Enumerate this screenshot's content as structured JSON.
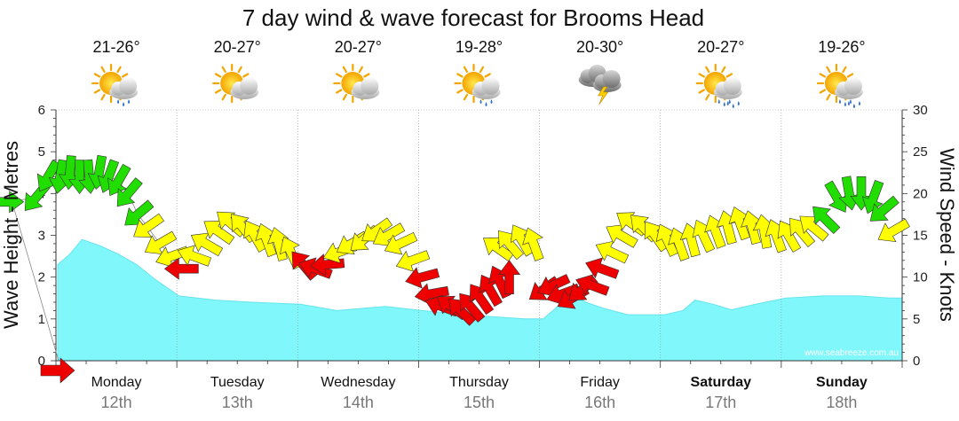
{
  "title": "7 day wind & wave forecast for Brooms Head",
  "watermark": "www.seabreeze.com.au",
  "left_axis_label": "Wave Height - Metres",
  "right_axis_label": "Wind Speed - Knots",
  "colors": {
    "wave_fill": "#7ff7fb",
    "wave_stroke": "#67e4ec",
    "green": "#22dd00",
    "yellow": "#ffff00",
    "red": "#ee0000",
    "grid": "#999999",
    "arrow_outline": "#333333"
  },
  "days": [
    {
      "name": "Monday",
      "date": "12th",
      "temp": "21-26°",
      "icon": "partly-cloudy-showers-icon",
      "bold": false
    },
    {
      "name": "Tuesday",
      "date": "13th",
      "temp": "20-27°",
      "icon": "partly-cloudy-icon",
      "bold": false
    },
    {
      "name": "Wednesday",
      "date": "14th",
      "temp": "20-27°",
      "icon": "partly-cloudy-icon",
      "bold": false
    },
    {
      "name": "Thursday",
      "date": "15th",
      "temp": "19-28°",
      "icon": "partly-cloudy-showers-icon",
      "bold": false
    },
    {
      "name": "Friday",
      "date": "16th",
      "temp": "20-30°",
      "icon": "thunderstorm-icon",
      "bold": false
    },
    {
      "name": "Saturday",
      "date": "17th",
      "temp": "20-27°",
      "icon": "partly-cloudy-rain-icon",
      "bold": true
    },
    {
      "name": "Sunday",
      "date": "18th",
      "temp": "19-26°",
      "icon": "partly-cloudy-rain-icon",
      "bold": true
    }
  ],
  "chart_data": {
    "type": "area",
    "x_unit": "days from start of Monday 12th",
    "left_axis": {
      "label": "Wave Height - Metres",
      "range": [
        0,
        6
      ],
      "ticks": [
        "0",
        "1",
        "2",
        "3",
        "4",
        "5",
        "6"
      ]
    },
    "right_axis": {
      "label": "Wind Speed - Knots",
      "range": [
        0,
        30
      ],
      "ticks": [
        "0",
        "5",
        "10",
        "15",
        "20",
        "25",
        "30"
      ]
    },
    "grid": true,
    "wave_height": [
      [
        0.0,
        2.3
      ],
      [
        0.1,
        2.55
      ],
      [
        0.2,
        2.9
      ],
      [
        0.35,
        2.75
      ],
      [
        0.5,
        2.55
      ],
      [
        0.65,
        2.3
      ],
      [
        0.8,
        1.95
      ],
      [
        1.0,
        1.55
      ],
      [
        1.3,
        1.45
      ],
      [
        1.6,
        1.4
      ],
      [
        2.0,
        1.35
      ],
      [
        2.3,
        1.2
      ],
      [
        2.5,
        1.25
      ],
      [
        2.7,
        1.3
      ],
      [
        3.0,
        1.2
      ],
      [
        3.3,
        1.12
      ],
      [
        3.6,
        1.05
      ],
      [
        3.85,
        1.0
      ],
      [
        4.0,
        1.0
      ],
      [
        4.1,
        1.25
      ],
      [
        4.2,
        1.55
      ],
      [
        4.25,
        1.6
      ],
      [
        4.35,
        1.4
      ],
      [
        4.5,
        1.25
      ],
      [
        4.7,
        1.1
      ],
      [
        5.0,
        1.1
      ],
      [
        5.15,
        1.2
      ],
      [
        5.25,
        1.45
      ],
      [
        5.4,
        1.35
      ],
      [
        5.55,
        1.22
      ],
      [
        5.75,
        1.35
      ],
      [
        6.0,
        1.5
      ],
      [
        6.3,
        1.55
      ],
      [
        6.6,
        1.55
      ],
      [
        6.85,
        1.5
      ]
    ],
    "wind": [
      {
        "t": -0.42,
        "kt": 19.0,
        "dir": 0,
        "c": "green"
      },
      {
        "t": -0.18,
        "kt": 19.5,
        "dir": 130,
        "c": "green"
      },
      {
        "t": -0.08,
        "kt": 22.0,
        "dir": 120,
        "c": "green"
      },
      {
        "t": 0.02,
        "kt": 22.0,
        "dir": 100,
        "c": "green"
      },
      {
        "t": 0.1,
        "kt": 22.5,
        "dir": 95,
        "c": "green"
      },
      {
        "t": 0.18,
        "kt": 22.0,
        "dir": 90,
        "c": "green"
      },
      {
        "t": 0.26,
        "kt": 22.0,
        "dir": 85,
        "c": "green"
      },
      {
        "t": 0.34,
        "kt": 22.5,
        "dir": 100,
        "c": "green"
      },
      {
        "t": 0.42,
        "kt": 22.0,
        "dir": 110,
        "c": "green"
      },
      {
        "t": 0.5,
        "kt": 21.5,
        "dir": 120,
        "c": "green"
      },
      {
        "t": 0.58,
        "kt": 20.0,
        "dir": 130,
        "c": "green"
      },
      {
        "t": 0.66,
        "kt": 17.5,
        "dir": 140,
        "c": "green"
      },
      {
        "t": 0.74,
        "kt": 16.0,
        "dir": 145,
        "c": "yellow"
      },
      {
        "t": 0.84,
        "kt": 14.0,
        "dir": 150,
        "c": "yellow"
      },
      {
        "t": 0.94,
        "kt": 12.5,
        "dir": 160,
        "c": "yellow"
      },
      {
        "t": 1.02,
        "kt": 11.0,
        "dir": 180,
        "c": "red"
      },
      {
        "t": 1.12,
        "kt": 12.5,
        "dir": 200,
        "c": "yellow"
      },
      {
        "t": 1.22,
        "kt": 14.0,
        "dir": 210,
        "c": "yellow"
      },
      {
        "t": 1.32,
        "kt": 15.5,
        "dir": 215,
        "c": "yellow"
      },
      {
        "t": 1.42,
        "kt": 16.5,
        "dir": 220,
        "c": "yellow"
      },
      {
        "t": 1.52,
        "kt": 16.0,
        "dir": 230,
        "c": "yellow"
      },
      {
        "t": 1.62,
        "kt": 15.0,
        "dir": 240,
        "c": "yellow"
      },
      {
        "t": 1.72,
        "kt": 14.5,
        "dir": 250,
        "c": "yellow"
      },
      {
        "t": 1.82,
        "kt": 14.0,
        "dir": 255,
        "c": "yellow"
      },
      {
        "t": 1.92,
        "kt": 13.0,
        "dir": 245,
        "c": "yellow"
      },
      {
        "t": 2.02,
        "kt": 11.5,
        "dir": 230,
        "c": "red"
      },
      {
        "t": 2.12,
        "kt": 11.0,
        "dir": 200,
        "c": "red"
      },
      {
        "t": 2.22,
        "kt": 11.5,
        "dir": 175,
        "c": "red"
      },
      {
        "t": 2.32,
        "kt": 13.0,
        "dir": 160,
        "c": "yellow"
      },
      {
        "t": 2.42,
        "kt": 14.0,
        "dir": 150,
        "c": "yellow"
      },
      {
        "t": 2.52,
        "kt": 14.5,
        "dir": 140,
        "c": "yellow"
      },
      {
        "t": 2.62,
        "kt": 15.5,
        "dir": 145,
        "c": "yellow"
      },
      {
        "t": 2.72,
        "kt": 15.0,
        "dir": 150,
        "c": "yellow"
      },
      {
        "t": 2.82,
        "kt": 14.0,
        "dir": 155,
        "c": "yellow"
      },
      {
        "t": 2.92,
        "kt": 12.0,
        "dir": 160,
        "c": "yellow"
      },
      {
        "t": 3.0,
        "kt": 10.0,
        "dir": 165,
        "c": "red"
      },
      {
        "t": 3.08,
        "kt": 8.0,
        "dir": 170,
        "c": "red"
      },
      {
        "t": 3.16,
        "kt": 6.5,
        "dir": 200,
        "c": "red"
      },
      {
        "t": 3.24,
        "kt": 6.5,
        "dir": 215,
        "c": "red"
      },
      {
        "t": 3.32,
        "kt": 6.0,
        "dir": 225,
        "c": "red"
      },
      {
        "t": 3.4,
        "kt": 6.5,
        "dir": 230,
        "c": "red"
      },
      {
        "t": 3.48,
        "kt": 7.5,
        "dir": 235,
        "c": "red"
      },
      {
        "t": 3.56,
        "kt": 8.5,
        "dir": 240,
        "c": "red"
      },
      {
        "t": 3.64,
        "kt": 9.5,
        "dir": 245,
        "c": "red"
      },
      {
        "t": 3.72,
        "kt": 10.0,
        "dir": 270,
        "c": "red"
      },
      {
        "t": 3.62,
        "kt": 13.5,
        "dir": 215,
        "c": "yellow"
      },
      {
        "t": 3.72,
        "kt": 14.0,
        "dir": 230,
        "c": "yellow"
      },
      {
        "t": 3.82,
        "kt": 14.5,
        "dir": 240,
        "c": "yellow"
      },
      {
        "t": 3.92,
        "kt": 14.0,
        "dir": 250,
        "c": "yellow"
      },
      {
        "t": 4.0,
        "kt": 8.5,
        "dir": 145,
        "c": "red"
      },
      {
        "t": 4.08,
        "kt": 9.0,
        "dir": 155,
        "c": "red"
      },
      {
        "t": 4.16,
        "kt": 8.0,
        "dir": 160,
        "c": "red"
      },
      {
        "t": 4.24,
        "kt": 7.5,
        "dir": 150,
        "c": "red"
      },
      {
        "t": 4.32,
        "kt": 8.5,
        "dir": 140,
        "c": "red"
      },
      {
        "t": 4.4,
        "kt": 9.0,
        "dir": 200,
        "c": "red"
      },
      {
        "t": 4.48,
        "kt": 11.0,
        "dir": 200,
        "c": "red"
      },
      {
        "t": 4.56,
        "kt": 13.0,
        "dir": 205,
        "c": "yellow"
      },
      {
        "t": 4.64,
        "kt": 15.0,
        "dir": 210,
        "c": "yellow"
      },
      {
        "t": 4.72,
        "kt": 16.5,
        "dir": 215,
        "c": "yellow"
      },
      {
        "t": 4.82,
        "kt": 16.0,
        "dir": 225,
        "c": "yellow"
      },
      {
        "t": 4.92,
        "kt": 15.0,
        "dir": 235,
        "c": "yellow"
      },
      {
        "t": 5.02,
        "kt": 14.5,
        "dir": 245,
        "c": "yellow"
      },
      {
        "t": 5.12,
        "kt": 14.0,
        "dir": 250,
        "c": "yellow"
      },
      {
        "t": 5.22,
        "kt": 14.5,
        "dir": 255,
        "c": "yellow"
      },
      {
        "t": 5.32,
        "kt": 15.0,
        "dir": 245,
        "c": "yellow"
      },
      {
        "t": 5.42,
        "kt": 15.5,
        "dir": 250,
        "c": "yellow"
      },
      {
        "t": 5.52,
        "kt": 16.0,
        "dir": 255,
        "c": "yellow"
      },
      {
        "t": 5.62,
        "kt": 16.5,
        "dir": 250,
        "c": "yellow"
      },
      {
        "t": 5.72,
        "kt": 16.0,
        "dir": 255,
        "c": "yellow"
      },
      {
        "t": 5.82,
        "kt": 15.5,
        "dir": 260,
        "c": "yellow"
      },
      {
        "t": 5.92,
        "kt": 15.0,
        "dir": 250,
        "c": "yellow"
      },
      {
        "t": 6.02,
        "kt": 15.0,
        "dir": 240,
        "c": "yellow"
      },
      {
        "t": 6.12,
        "kt": 15.5,
        "dir": 230,
        "c": "yellow"
      },
      {
        "t": 6.22,
        "kt": 16.0,
        "dir": 220,
        "c": "yellow"
      },
      {
        "t": 6.32,
        "kt": 17.0,
        "dir": 225,
        "c": "green"
      },
      {
        "t": 6.42,
        "kt": 19.5,
        "dir": 60,
        "c": "green"
      },
      {
        "t": 6.52,
        "kt": 20.0,
        "dir": 80,
        "c": "green"
      },
      {
        "t": 6.62,
        "kt": 20.0,
        "dir": 90,
        "c": "green"
      },
      {
        "t": 6.72,
        "kt": 19.5,
        "dir": 110,
        "c": "green"
      },
      {
        "t": 6.8,
        "kt": 18.0,
        "dir": 140,
        "c": "green"
      },
      {
        "t": 6.88,
        "kt": 15.5,
        "dir": 150,
        "c": "yellow"
      }
    ]
  }
}
